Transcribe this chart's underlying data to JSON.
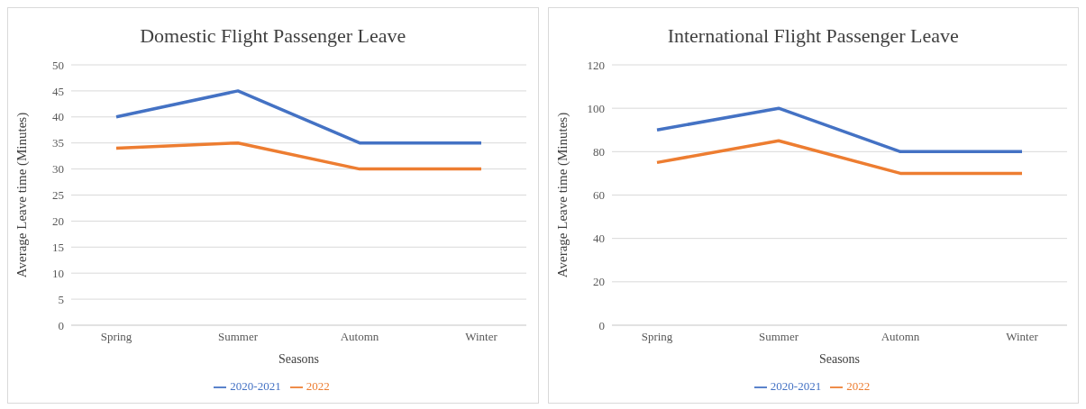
{
  "chart_data": [
    {
      "type": "line",
      "title": "Domestic Flight Passenger Leave",
      "xlabel": "Seasons",
      "ylabel": "Average Leave time (Minutes)",
      "categories": [
        "Spring",
        "Summer",
        "Automn",
        "Winter"
      ],
      "series": [
        {
          "name": "2020-2021",
          "color": "#4472c4",
          "values": [
            40,
            45,
            35,
            35
          ]
        },
        {
          "name": "2022",
          "color": "#ed7d31",
          "values": [
            34,
            35,
            30,
            30
          ]
        }
      ],
      "ylim": [
        0,
        50
      ],
      "yticks": [
        0,
        5,
        10,
        15,
        20,
        25,
        30,
        35,
        40,
        45,
        50
      ],
      "grid": "y",
      "legend": "bottom",
      "marker": "none",
      "line_style": "solid"
    },
    {
      "type": "line",
      "title": "International Flight Passenger Leave",
      "xlabel": "Seasons",
      "ylabel": "Average Leave time (Minutes)",
      "categories": [
        "Spring",
        "Summer",
        "Automn",
        "Winter"
      ],
      "series": [
        {
          "name": "2020-2021",
          "color": "#4472c4",
          "values": [
            90,
            100,
            80,
            80
          ]
        },
        {
          "name": "2022",
          "color": "#ed7d31",
          "values": [
            75,
            85,
            70,
            70
          ]
        }
      ],
      "ylim": [
        0,
        120
      ],
      "yticks": [
        0,
        20,
        40,
        60,
        80,
        100,
        120
      ],
      "grid": "y",
      "legend": "bottom",
      "marker": "none",
      "line_style": "solid"
    }
  ]
}
